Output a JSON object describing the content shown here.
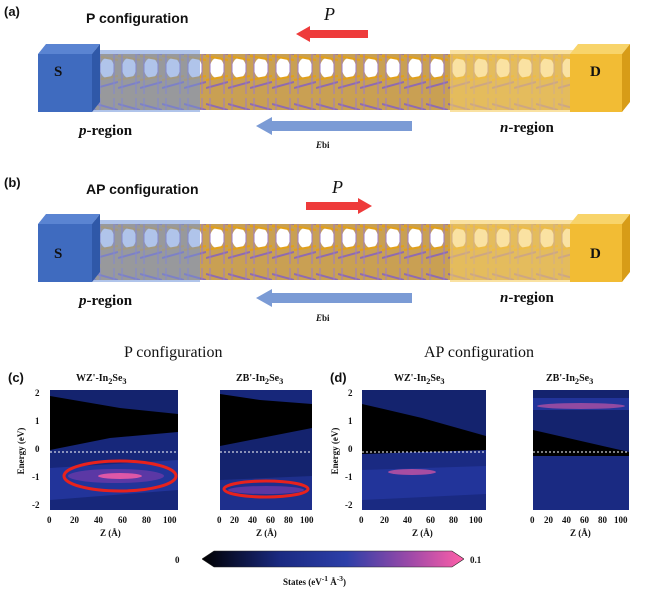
{
  "panels": {
    "a": {
      "label": "(a)",
      "title": "P configuration",
      "polarization": "P",
      "direction": "left",
      "source": "S",
      "drain": "D",
      "p_region": "p",
      "n_region": "n",
      "region_suffix": "-region",
      "field": "E",
      "field_sub": "bi"
    },
    "b": {
      "label": "(b)",
      "title": "AP configuration",
      "polarization": "P",
      "direction": "right",
      "source": "S",
      "drain": "D",
      "p_region": "p",
      "n_region": "n",
      "region_suffix": "-region",
      "field": "E",
      "field_sub": "bi"
    },
    "c": {
      "label": "(c)",
      "title": "P configuration",
      "plots": [
        {
          "prefix": "WZ'-In",
          "s1": "2",
          "mid": "Se",
          "s2": "3"
        },
        {
          "prefix": "ZB'-In",
          "s1": "2",
          "mid": "Se",
          "s2": "3"
        }
      ]
    },
    "d": {
      "label": "(d)",
      "title": "AP configuration",
      "plots": [
        {
          "prefix": "WZ'-In",
          "s1": "2",
          "mid": "Se",
          "s2": "3"
        },
        {
          "prefix": "ZB'-In",
          "s1": "2",
          "mid": "Se",
          "s2": "3"
        }
      ]
    }
  },
  "axes": {
    "y_label": "Energy (eV)",
    "x_label": "Z (Å)",
    "y_ticks": [
      "2",
      "1",
      "0",
      "-1",
      "-2"
    ],
    "x_ticks": [
      "0",
      "20",
      "40",
      "60",
      "80",
      "100"
    ]
  },
  "colorbar": {
    "min": "0",
    "max": "0.1",
    "label_main": "States (eV",
    "sup1": "-1",
    "label_mid": " Å",
    "sup2": "-3",
    "label_end": ")"
  },
  "colors": {
    "source": "#3f6bbf",
    "drain": "#f2bc34",
    "polarization_arrow": "#ee3b3b",
    "field_arrow": "#7b9bd5",
    "highlight_ellipse": "#e8221d"
  }
}
